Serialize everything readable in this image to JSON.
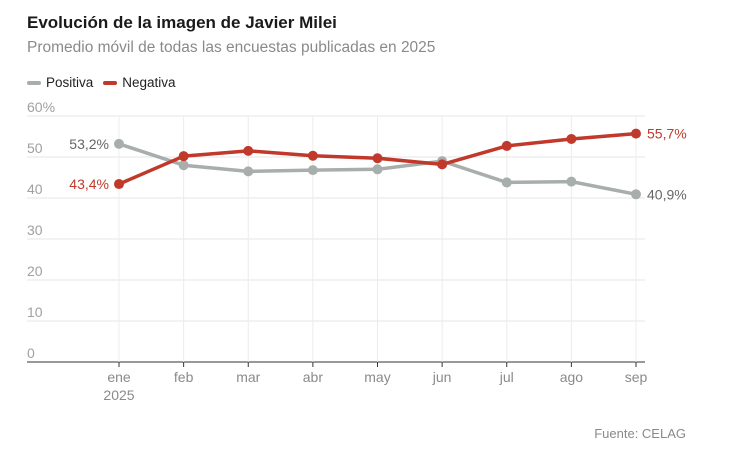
{
  "chart_data": {
    "type": "line",
    "title": "Evolución de la imagen de Javier Milei",
    "subtitle": "Promedio móvil de todas las encuestas publicadas en 2025",
    "source": "Fuente: CELAG",
    "categories": [
      "ene",
      "feb",
      "mar",
      "abr",
      "may",
      "jun",
      "jul",
      "ago",
      "sep"
    ],
    "category_sublabels": [
      "2025",
      "",
      "",
      "",
      "",
      "",
      "",
      "",
      ""
    ],
    "yticks": [
      "60%",
      "50",
      "40",
      "30",
      "20",
      "10",
      "0"
    ],
    "ylim": [
      0,
      60
    ],
    "grid": true,
    "legend_position": "top-left",
    "series": [
      {
        "name": "Positiva",
        "color": "#a8aeab",
        "values": [
          53.2,
          48.0,
          46.5,
          46.8,
          47.0,
          49.0,
          43.8,
          44.0,
          40.9
        ],
        "labels": [
          "53,2%",
          "",
          "",
          "",
          "",
          "",
          "",
          "",
          "40,9%"
        ]
      },
      {
        "name": "Negativa",
        "color": "#c0392b",
        "values": [
          43.4,
          50.2,
          51.5,
          50.3,
          49.7,
          48.2,
          52.7,
          54.4,
          55.7
        ],
        "labels": [
          "43,4%",
          "",
          "",
          "",
          "",
          "",
          "",
          "",
          "55,7%"
        ]
      }
    ]
  }
}
